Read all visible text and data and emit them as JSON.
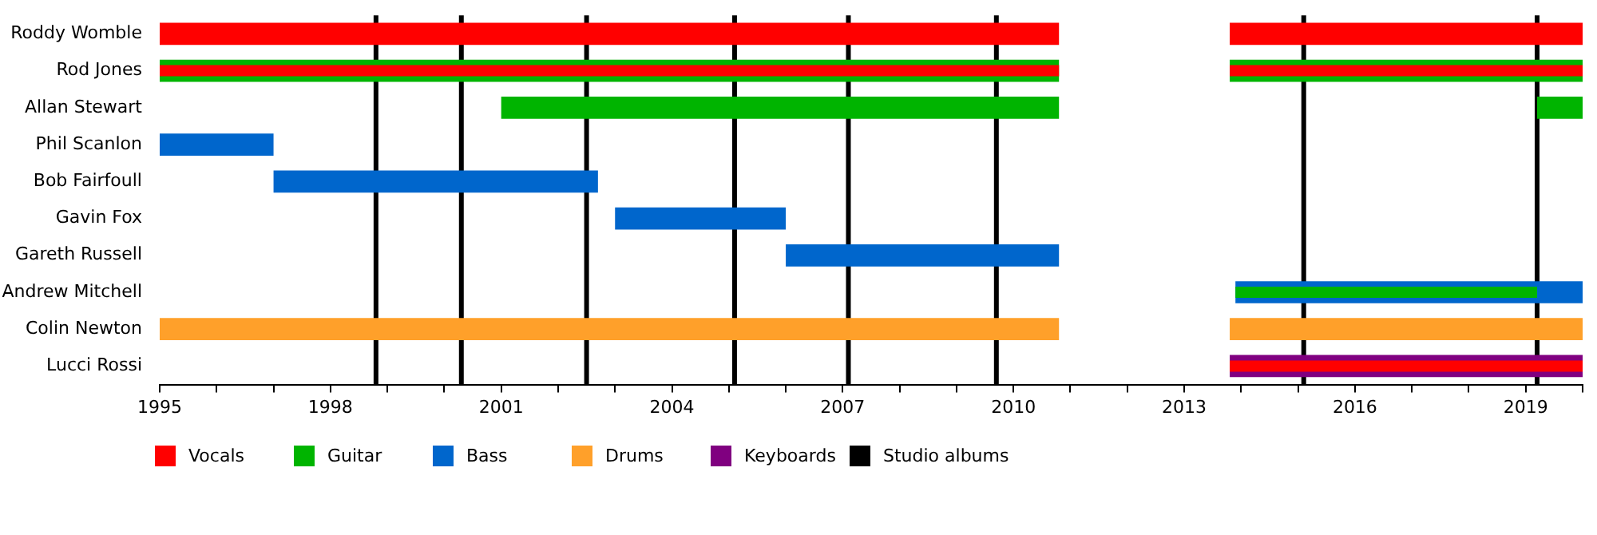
{
  "chart_data": {
    "type": "bar",
    "orientation": "horizontal",
    "categories": [
      "Roddy Womble",
      "Rod Jones",
      "Allan Stewart",
      "Phil Scanlon",
      "Bob Fairfoull",
      "Gavin Fox",
      "Gareth Russell",
      "Andrew Mitchell",
      "Colin Newton",
      "Lucci Rossi"
    ],
    "series": [
      {
        "name": "Vocals",
        "color": "#ff0000",
        "base": [
          1995,
          null,
          null,
          null,
          null,
          null,
          null,
          null,
          null,
          null
        ],
        "values": [
          15.8,
          null,
          null,
          null,
          null,
          null,
          null,
          null,
          null,
          null
        ]
      },
      {
        "color": "#ff0000",
        "base": [
          2013.8,
          null,
          null,
          null,
          null,
          null,
          null,
          null,
          null,
          null
        ],
        "values": [
          6.2,
          null,
          null,
          null,
          null,
          null,
          null,
          null,
          null,
          null
        ]
      },
      {
        "name": "Guitar",
        "color": "#00b400",
        "base": [
          null,
          1995,
          2001,
          null,
          null,
          null,
          null,
          null,
          null,
          null
        ],
        "values": [
          null,
          15.8,
          9.8,
          null,
          null,
          null,
          null,
          null,
          null,
          null
        ]
      },
      {
        "color": "#00b400",
        "base": [
          null,
          2013.8,
          2019.2,
          null,
          null,
          null,
          null,
          null,
          null,
          null
        ],
        "values": [
          null,
          6.2,
          0.8,
          null,
          null,
          null,
          null,
          null,
          null,
          null
        ]
      },
      {
        "name": "Bass",
        "color": "#0066cc",
        "base": [
          null,
          null,
          null,
          1995,
          1997,
          2003,
          2006,
          2013.9,
          null,
          null
        ],
        "values": [
          null,
          null,
          null,
          2,
          5.7,
          3,
          4.8,
          6.1,
          null,
          null
        ]
      },
      {
        "name": "Drums",
        "color": "#ffa02a",
        "base": [
          null,
          null,
          null,
          null,
          null,
          null,
          null,
          null,
          1995,
          null
        ],
        "values": [
          null,
          null,
          null,
          null,
          null,
          null,
          null,
          null,
          15.8,
          null
        ]
      },
      {
        "color": "#ffa02a",
        "base": [
          null,
          null,
          null,
          null,
          null,
          null,
          null,
          null,
          2013.8,
          null
        ],
        "values": [
          null,
          null,
          null,
          null,
          null,
          null,
          null,
          null,
          6.2,
          null
        ]
      },
      {
        "name": "Keyboards",
        "color": "#800080",
        "base": [
          null,
          null,
          null,
          null,
          null,
          null,
          null,
          null,
          null,
          2013.8
        ],
        "values": [
          null,
          null,
          null,
          null,
          null,
          null,
          null,
          null,
          null,
          6.2
        ]
      },
      {
        "color": "#ff0000",
        "base": [
          null,
          1995,
          null,
          null,
          null,
          null,
          null,
          null,
          null,
          2013.8
        ],
        "values": [
          null,
          15.8,
          null,
          null,
          null,
          null,
          null,
          null,
          null,
          6.2
        ]
      },
      {
        "color": "#ff0000",
        "base": [
          null,
          2013.8,
          null,
          null,
          null,
          null,
          null,
          null,
          null,
          null
        ],
        "values": [
          null,
          6.2,
          null,
          null,
          null,
          null,
          null,
          null,
          null,
          null
        ]
      },
      {
        "color": "#00b400",
        "base": [
          null,
          null,
          null,
          null,
          null,
          null,
          null,
          2013.9,
          null,
          null
        ],
        "values": [
          null,
          null,
          null,
          null,
          null,
          null,
          null,
          5.3,
          null,
          null
        ]
      }
    ],
    "xlim": [
      1995,
      2020
    ],
    "xticks": [
      1995,
      {
        "value": 1996,
        "label": null
      },
      {
        "value": 1997,
        "label": null
      },
      1998,
      {
        "value": 1999,
        "label": null
      },
      {
        "value": 2000,
        "label": null
      },
      2001,
      {
        "value": 2002,
        "label": null
      },
      {
        "value": 2003,
        "label": null
      },
      2004,
      {
        "value": 2005,
        "label": null
      },
      {
        "value": 2006,
        "label": null
      },
      2007,
      {
        "value": 2008,
        "label": null
      },
      {
        "value": 2009,
        "label": null
      },
      2010,
      {
        "value": 2011,
        "label": null
      },
      {
        "value": 2012,
        "label": null
      },
      2013,
      {
        "value": 2014,
        "label": null
      },
      {
        "value": 2015,
        "label": null
      },
      2016,
      {
        "value": 2017,
        "label": null
      },
      {
        "value": 2018,
        "label": null
      },
      2019,
      {
        "value": 2020,
        "label": null
      }
    ],
    "ref_lines": [
      {
        "axis": "x",
        "value": 1998.8,
        "color": "#000000"
      },
      {
        "axis": "x",
        "value": 2000.3,
        "color": "#000000"
      },
      {
        "axis": "x",
        "value": 2002.5,
        "color": "#000000"
      },
      {
        "axis": "x",
        "value": 2005.1,
        "color": "#000000"
      },
      {
        "axis": "x",
        "value": 2007.1,
        "color": "#000000"
      },
      {
        "axis": "x",
        "value": 2009.7,
        "color": "#000000"
      },
      {
        "axis": "x",
        "value": 2015.1,
        "color": "#000000"
      },
      {
        "axis": "x",
        "value": 2019.2,
        "color": "#000000"
      }
    ],
    "annotations": [
      "Studio albums"
    ],
    "legend": "bottom",
    "grid": false
  }
}
